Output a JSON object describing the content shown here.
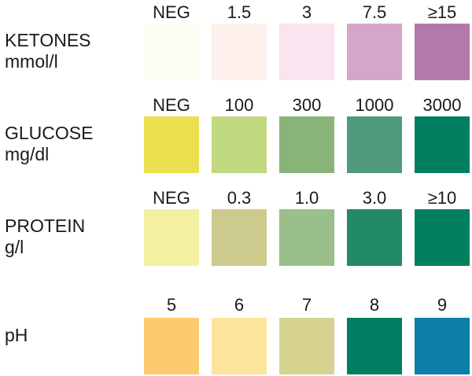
{
  "rows": [
    {
      "name": "KETONES",
      "unit": "mmol/l",
      "levels": [
        "NEG",
        "1.5",
        "3",
        "7.5",
        "≥15"
      ],
      "colors": [
        "#fefdf3",
        "#fdf0ed",
        "#fbe4ef",
        "#d6a6c8",
        "#b27aaa"
      ]
    },
    {
      "name": "GLUCOSE",
      "unit": "mg/dl",
      "levels": [
        "NEG",
        "100",
        "300",
        "1000",
        "3000"
      ],
      "colors": [
        "#ede04e",
        "#c0d97e",
        "#88b47a",
        "#4f9b7c",
        "#007e60"
      ]
    },
    {
      "name": "PROTEIN",
      "unit": "g/l",
      "levels": [
        "NEG",
        "0.3",
        "1.0",
        "3.0",
        "≥10"
      ],
      "colors": [
        "#f3f1a0",
        "#cdca8d",
        "#9bbf8a",
        "#238a68",
        "#00805f"
      ]
    },
    {
      "name": "pH",
      "unit": "",
      "levels": [
        "5",
        "6",
        "7",
        "8",
        "9"
      ],
      "colors": [
        "#fccb6d",
        "#fde49b",
        "#d5d38f",
        "#007e63",
        "#0b7ea9"
      ]
    }
  ]
}
